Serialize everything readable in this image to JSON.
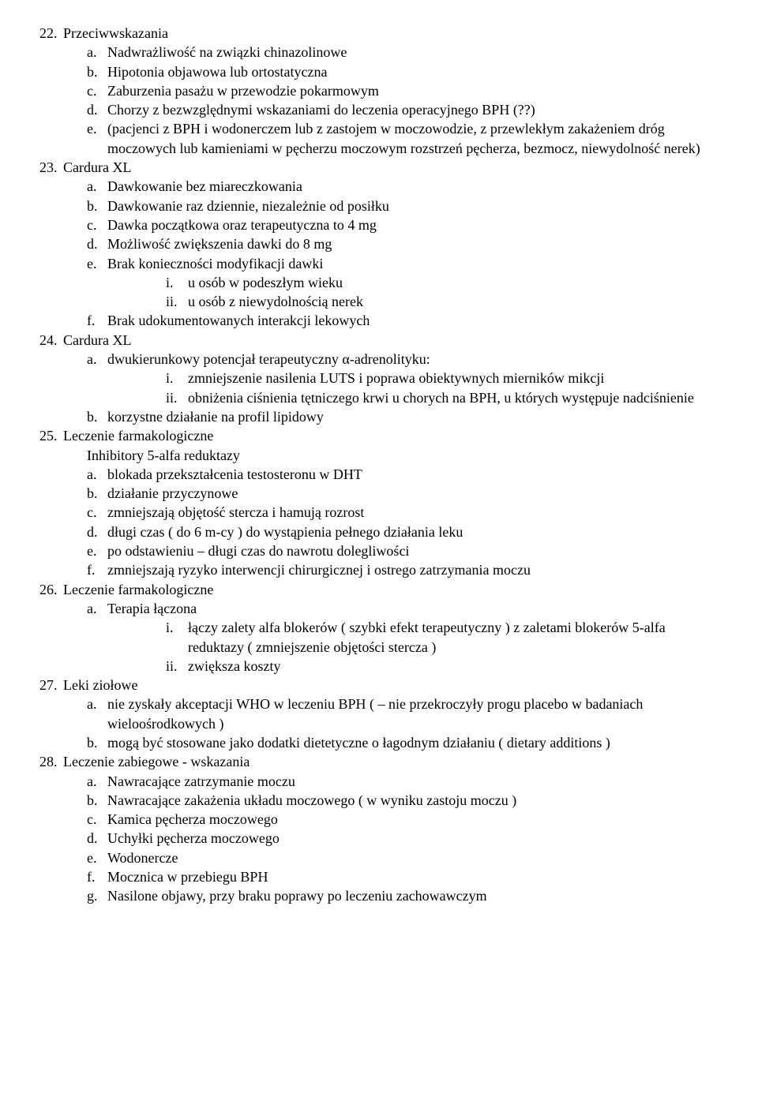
{
  "sections": [
    {
      "num": "22.",
      "title": "Przeciwwskazania",
      "items": [
        {
          "l": "a.",
          "t": "Nadwrażliwość na związki chinazolinowe"
        },
        {
          "l": "b.",
          "t": "Hipotonia objawowa lub ortostatyczna"
        },
        {
          "l": "c.",
          "t": "Zaburzenia pasażu w przewodzie pokarmowym"
        },
        {
          "l": "d.",
          "t": "Chorzy z bezwzględnymi wskazaniami do leczenia operacyjnego BPH (??)"
        },
        {
          "l": "e.",
          "t": "(pacjenci z BPH i wodonerczem lub z zastojem w moczowodzie, z przewlekłym zakażeniem dróg moczowych lub kamieniami w pęcherzu moczowym rozstrzeń pęcherza, bezmocz, niewydolność nerek)"
        }
      ]
    },
    {
      "num": "23.",
      "title": "Cardura XL",
      "items": [
        {
          "l": "a.",
          "t": "Dawkowanie bez miareczkowania"
        },
        {
          "l": "b.",
          "t": "Dawkowanie raz dziennie, niezależnie od posiłku"
        },
        {
          "l": "c.",
          "t": "Dawka początkowa oraz terapeutyczna to 4 mg"
        },
        {
          "l": "d.",
          "t": "Możliwość zwiększenia dawki do 8 mg"
        },
        {
          "l": "e.",
          "t": "Brak konieczności modyfikacji dawki",
          "sub": [
            {
              "l": "i.",
              "t": "u osób w podeszłym wieku"
            },
            {
              "l": "ii.",
              "t": "u osób z niewydolnością nerek"
            }
          ]
        },
        {
          "l": "f.",
          "t": "Brak udokumentowanych interakcji lekowych"
        }
      ]
    },
    {
      "num": "24.",
      "title": "Cardura XL",
      "items": [
        {
          "l": "a.",
          "t": "dwukierunkowy potencjał terapeutyczny α-adrenolityku:",
          "sub": [
            {
              "l": "i.",
              "t": "zmniejszenie nasilenia LUTS i poprawa obiektywnych mierników mikcji"
            },
            {
              "l": "ii.",
              "t": "obniżenia ciśnienia tętniczego krwi u chorych na BPH, u których występuje nadciśnienie"
            }
          ]
        },
        {
          "l": "b.",
          "t": "korzystne działanie na profil lipidowy"
        }
      ]
    },
    {
      "num": "25.",
      "title": "Leczenie farmakologiczne",
      "subtitle": "Inhibitory 5-alfa reduktazy",
      "items": [
        {
          "l": "a.",
          "t": "blokada przekształcenia testosteronu w DHT"
        },
        {
          "l": "b.",
          "t": "działanie przyczynowe"
        },
        {
          "l": "c.",
          "t": "zmniejszają objętość stercza i hamują rozrost"
        },
        {
          "l": "d.",
          "t": "długi czas ( do 6 m-cy ) do wystąpienia pełnego działania leku"
        },
        {
          "l": "e.",
          "t": "po odstawieniu – długi czas do nawrotu dolegliwości"
        },
        {
          "l": "f.",
          "t": "zmniejszają ryzyko interwencji chirurgicznej i ostrego zatrzymania moczu"
        }
      ]
    },
    {
      "num": "26.",
      "title": "Leczenie farmakologiczne",
      "items": [
        {
          "l": "a.",
          "t": "Terapia łączona",
          "sub": [
            {
              "l": "i.",
              "t": "łączy zalety alfa blokerów ( szybki efekt terapeutyczny ) z zaletami blokerów 5-alfa reduktazy ( zmniejszenie objętości stercza )"
            },
            {
              "l": "ii.",
              "t": "zwiększa koszty"
            }
          ]
        }
      ]
    },
    {
      "num": "27.",
      "title": "Leki ziołowe",
      "items": [
        {
          "l": "a.",
          "t": "nie zyskały akceptacji WHO w leczeniu BPH  ( – nie przekroczyły progu placebo w badaniach wieloośrodkowych )"
        },
        {
          "l": "b.",
          "t": "mogą być stosowane jako dodatki dietetyczne o łagodnym działaniu ( dietary additions )"
        }
      ]
    },
    {
      "num": "28.",
      "title": "Leczenie zabiegowe - wskazania",
      "items": [
        {
          "l": "a.",
          "t": "Nawracające zatrzymanie moczu"
        },
        {
          "l": "b.",
          "t": "Nawracające zakażenia układu moczowego ( w wyniku zastoju moczu )"
        },
        {
          "l": "c.",
          "t": "Kamica pęcherza moczowego"
        },
        {
          "l": "d.",
          "t": "Uchyłki pęcherza moczowego"
        },
        {
          "l": "e.",
          "t": "Wodonercze"
        },
        {
          "l": "f.",
          "t": "Mocznica w przebiegu BPH"
        },
        {
          "l": "g.",
          "t": "Nasilone objawy, przy braku poprawy po leczeniu zachowawczym"
        }
      ]
    }
  ]
}
